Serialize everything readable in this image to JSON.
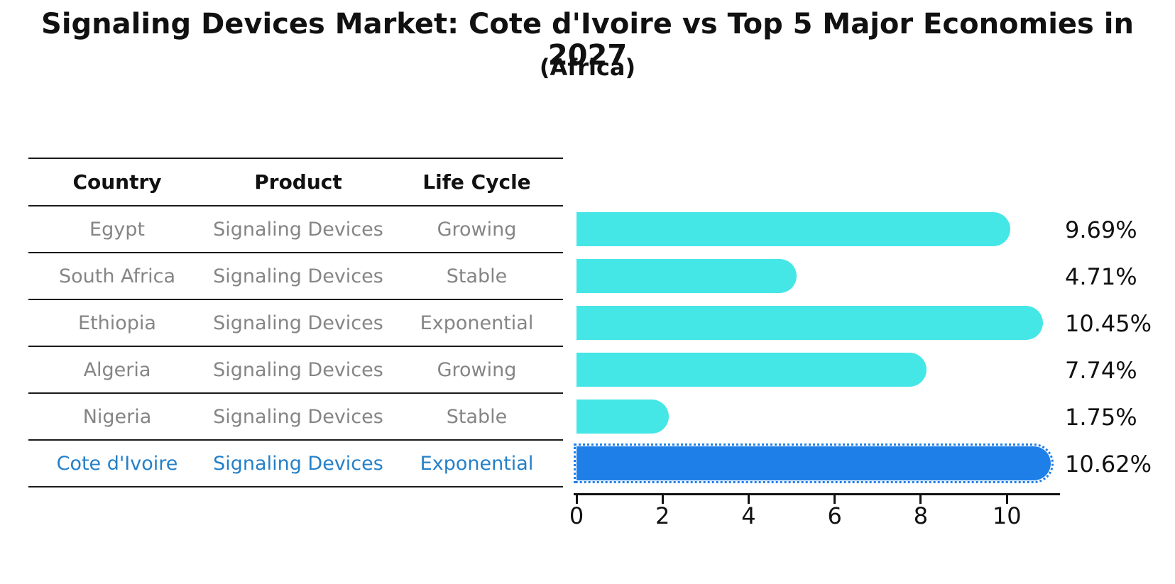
{
  "header": {
    "title": "Signaling Devices Market: Cote d'Ivoire vs Top 5 Major Economies in 2027",
    "subtitle": "(Africa)"
  },
  "table": {
    "columns": [
      "Country",
      "Product",
      "Life Cycle"
    ],
    "rows": [
      {
        "country": "Egypt",
        "product": "Signaling Devices",
        "life_cycle": "Growing"
      },
      {
        "country": "South Africa",
        "product": "Signaling Devices",
        "life_cycle": "Stable"
      },
      {
        "country": "Ethiopia",
        "product": "Signaling Devices",
        "life_cycle": "Exponential"
      },
      {
        "country": "Algeria",
        "product": "Signaling Devices",
        "life_cycle": "Growing"
      },
      {
        "country": "Nigeria",
        "product": "Signaling Devices",
        "life_cycle": "Stable"
      },
      {
        "country": "Cote d'Ivoire",
        "product": "Signaling Devices",
        "life_cycle": "Exponential"
      }
    ],
    "highlight_row": 5
  },
  "chart_data": {
    "type": "bar",
    "orientation": "horizontal",
    "title": "Signaling Devices Market: Cote d'Ivoire vs Top 5 Major Economies in 2027",
    "subtitle": "(Africa)",
    "categories": [
      "Egypt",
      "South Africa",
      "Ethiopia",
      "Algeria",
      "Nigeria",
      "Cote d'Ivoire"
    ],
    "values": [
      9.69,
      4.71,
      10.45,
      7.74,
      1.75,
      10.62
    ],
    "value_labels": [
      "9.69%",
      "4.71%",
      "10.45%",
      "7.74%",
      "1.75%",
      "10.62%"
    ],
    "unit": "%",
    "xticks": [
      "0",
      "2",
      "4",
      "6",
      "8",
      "10"
    ],
    "xtick_values": [
      0,
      2,
      4,
      6,
      8,
      10
    ],
    "xlim": [
      0,
      11.3
    ],
    "grid": false,
    "legend": false,
    "highlight_index": 5,
    "colors": {
      "bar": "#45E6E6",
      "highlight_bar": "#1E7FE8",
      "highlight_text": "#2580C8",
      "table_text": "#858585",
      "axis": "#111111"
    }
  }
}
